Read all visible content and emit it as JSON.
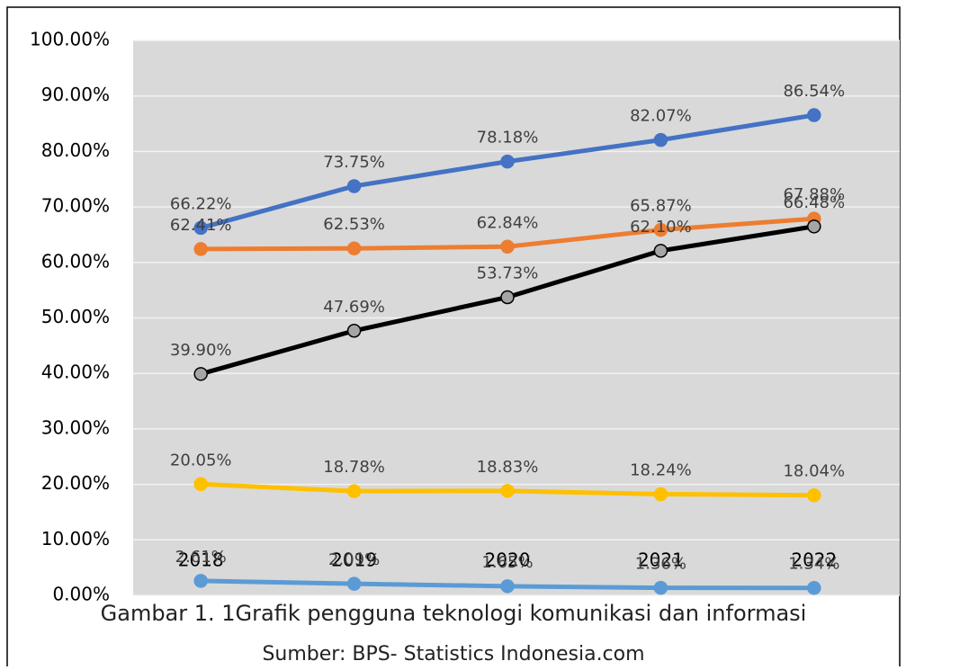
{
  "chart_data": {
    "type": "line",
    "categories": [
      "2018",
      "2019",
      "2020",
      "2021",
      "2022"
    ],
    "series": [
      {
        "color": "#4472c4",
        "values": [
          66.22,
          73.75,
          78.18,
          82.07,
          86.54
        ],
        "value_labels": [
          "66.22%",
          "73.75%",
          "78.18%",
          "82.07%",
          "86.54%"
        ]
      },
      {
        "color": "#ed7d31",
        "values": [
          62.41,
          62.53,
          62.84,
          65.87,
          67.88
        ],
        "value_labels": [
          "62.41%",
          "62.53%",
          "62.84%",
          "65.87%",
          "67.88%"
        ]
      },
      {
        "color": "#000000",
        "marker_fill": "#a5a5a5",
        "values": [
          39.9,
          47.69,
          53.73,
          62.1,
          66.48
        ],
        "value_labels": [
          "39.90%",
          "47.69%",
          "53.73%",
          "62.10%",
          "66.48%"
        ]
      },
      {
        "color": "#ffc000",
        "values": [
          20.05,
          18.78,
          18.83,
          18.24,
          18.04
        ],
        "value_labels": [
          "20.05%",
          "18.78%",
          "18.83%",
          "18.24%",
          "18.04%"
        ]
      },
      {
        "color": "#5b9bd5",
        "values": [
          2.61,
          2.09,
          1.65,
          1.36,
          1.34
        ],
        "value_labels": [
          "2.61%",
          "2.09%",
          "1.65%",
          "1.36%",
          "1.34%"
        ]
      }
    ],
    "ylim": [
      0,
      100
    ],
    "yticks": [
      {
        "value": 0,
        "label": "0.00%"
      },
      {
        "value": 10,
        "label": "10.00%"
      },
      {
        "value": 20,
        "label": "20.00%"
      },
      {
        "value": 30,
        "label": "30.00%"
      },
      {
        "value": 40,
        "label": "40.00%"
      },
      {
        "value": 50,
        "label": "50.00%"
      },
      {
        "value": 60,
        "label": "60.00%"
      },
      {
        "value": 70,
        "label": "70.00%"
      },
      {
        "value": 80,
        "label": "80.00%"
      },
      {
        "value": 90,
        "label": "90.00%"
      },
      {
        "value": 100,
        "label": "100.00%"
      }
    ],
    "grid": true,
    "caption": "Gambar 1. 1Grafik pengguna teknologi komunikasi dan informasi",
    "source": "Sumber: BPS- Statistics Indonesia.com"
  }
}
